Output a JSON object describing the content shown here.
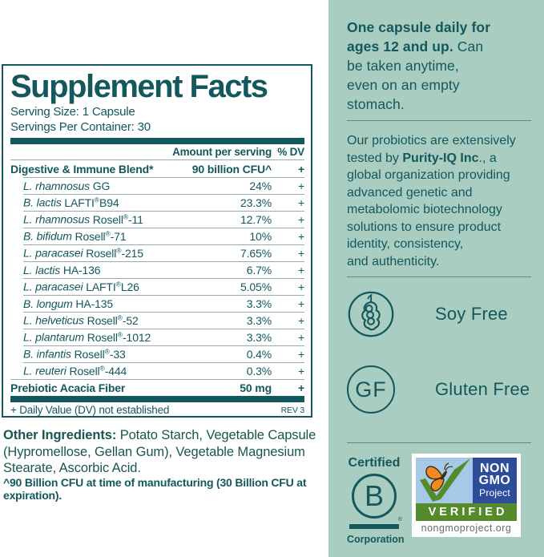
{
  "label": {
    "title": "Supplement Facts",
    "serving_size": "Serving Size: 1 Capsule",
    "servings_per_container": "Servings Per Container: 30",
    "col_amount": "Amount per serving",
    "col_dv": "% DV",
    "rows": [
      {
        "bold": true,
        "indent": false,
        "italic": "",
        "rest": "Digestive & Immune Blend*",
        "amount": "90 billion CFU^",
        "dv": "+"
      },
      {
        "bold": false,
        "indent": true,
        "italic": "L. rhamnosus",
        "rest": " GG",
        "amount": "24%",
        "dv": "+"
      },
      {
        "bold": false,
        "indent": true,
        "italic": "B. lactis",
        "rest": " LAFTI®B94",
        "amount": "23.3%",
        "dv": "+"
      },
      {
        "bold": false,
        "indent": true,
        "italic": "L. rhamnosus",
        "rest": " Rosell®-11",
        "amount": "12.7%",
        "dv": "+"
      },
      {
        "bold": false,
        "indent": true,
        "italic": "B. bifidum",
        "rest": " Rosell®-71",
        "amount": "10%",
        "dv": "+"
      },
      {
        "bold": false,
        "indent": true,
        "italic": "L. paracasei",
        "rest": " Rosell®-215",
        "amount": "7.65%",
        "dv": "+"
      },
      {
        "bold": false,
        "indent": true,
        "italic": "L. lactis",
        "rest": " HA-136",
        "amount": "6.7%",
        "dv": "+"
      },
      {
        "bold": false,
        "indent": true,
        "italic": "L. paracasei",
        "rest": " LAFTI®L26",
        "amount": "5.05%",
        "dv": "+"
      },
      {
        "bold": false,
        "indent": true,
        "italic": "B. longum",
        "rest": " HA-135",
        "amount": "3.3%",
        "dv": "+"
      },
      {
        "bold": false,
        "indent": true,
        "italic": "L. helveticus",
        "rest": " Rosell®-52",
        "amount": "3.3%",
        "dv": "+"
      },
      {
        "bold": false,
        "indent": true,
        "italic": "L. plantarum",
        "rest": " Rosell®-1012",
        "amount": "3.3%",
        "dv": "+"
      },
      {
        "bold": false,
        "indent": true,
        "italic": "B. infantis",
        "rest": " Rosell®-33",
        "amount": "0.4%",
        "dv": "+"
      },
      {
        "bold": false,
        "indent": true,
        "italic": "L. reuteri",
        "rest": " Rosell®-444",
        "amount": "0.3%",
        "dv": "+"
      },
      {
        "bold": true,
        "indent": false,
        "italic": "",
        "rest": "Prebiotic Acacia Fiber",
        "amount": "50 mg",
        "dv": "+"
      }
    ],
    "footnote": "+ Daily Value (DV) not established",
    "rev": "REV 3"
  },
  "below": {
    "other_ingredients_label": "Other Ingredients:",
    "other_ingredients_text": " Potato Starch, Vegetable Capsule\n(Hypromellose, Gellan Gum), Vegetable Magnesium\nStearate, Ascorbic Acid.",
    "cfu_note": "^90 Billion CFU at time of manufacturing (30 Billion CFU at expiration)."
  },
  "sidebar": {
    "para1_bold": "One capsule daily for\nages 12 and up.",
    "para1_rest": " Can\nbe taken anytime,\neven on an empty\nstomach.",
    "para2_pre": "Our probiotics are extensively\ntested by ",
    "para2_bold": "Purity-IQ Inc",
    "para2_post": "., a\nglobal organization providing\nadvanced genetic and\nmetabolomic biotechnology\nsolutions to ensure product\nidentity, consistency,\nand authenticity.",
    "badges": [
      {
        "icon": "soy-pod-icon",
        "label": "Soy Free"
      },
      {
        "icon": "gf-monogram-icon",
        "icon_text": "GF",
        "label": "Gluten Free"
      }
    ],
    "bcorp": {
      "top": "Certified",
      "letter": "B",
      "reg": "®",
      "bottom": "Corporation"
    },
    "nongmo": {
      "line1": "NON",
      "line2": "GMO",
      "line3": "Project",
      "verified": "VERIFIED",
      "url": "nongmoproject.org"
    }
  },
  "colors": {
    "teal_text": "#12585d",
    "sidebar_bg": "#a9cdc0",
    "hairline": "#9aacab",
    "nongmo_navy": "#2d4c9a",
    "nongmo_green": "#568b2b",
    "nongmo_sky": "#a6c9e8",
    "butterfly_orange": "#f08a21",
    "nongmo_url_gray": "#5c7160"
  }
}
